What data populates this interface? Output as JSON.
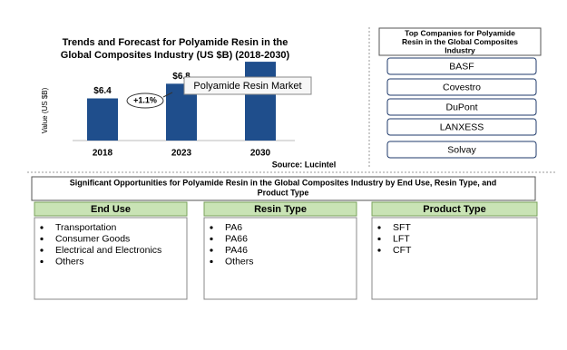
{
  "chart_data": {
    "type": "bar",
    "title": [
      "Trends and Forecast for Polyamide Resin in the",
      "Global Composites Industry (US $B) (2018-2030)"
    ],
    "y_label": "Value (US $B)",
    "categories": [
      "2018",
      "2023",
      "2030"
    ],
    "values": [
      6.4,
      6.8,
      7.4
    ],
    "value_labels": [
      "$6.4",
      "$6.8",
      null
    ],
    "color": "#1f4e8c",
    "ylim": [
      5.25,
      7.6
    ],
    "annotation": "+1.1%",
    "tooltip": "Polyamide Resin Market",
    "source": "Source: Lucintel"
  },
  "companies": {
    "title": [
      "Top Companies for Polyamide",
      "Resin in the Global Composites",
      "Industry"
    ],
    "items": [
      "BASF",
      "Covestro",
      "DuPont",
      "LANXESS",
      "Solvay"
    ]
  },
  "opportunities": {
    "title": [
      "Significant Opportunities for Polyamide Resin in the Global Composites Industry by End Use, Resin Type, and",
      "Product Type"
    ],
    "columns": [
      {
        "header": "End Use",
        "items": [
          "Transportation",
          "Consumer Goods",
          "Electrical and Electronics",
          "Others"
        ]
      },
      {
        "header": "Resin Type",
        "items": [
          "PA6",
          "PA66",
          "PA46",
          "Others"
        ]
      },
      {
        "header": "Product Type",
        "items": [
          "SFT",
          "LFT",
          "CFT"
        ]
      }
    ]
  }
}
